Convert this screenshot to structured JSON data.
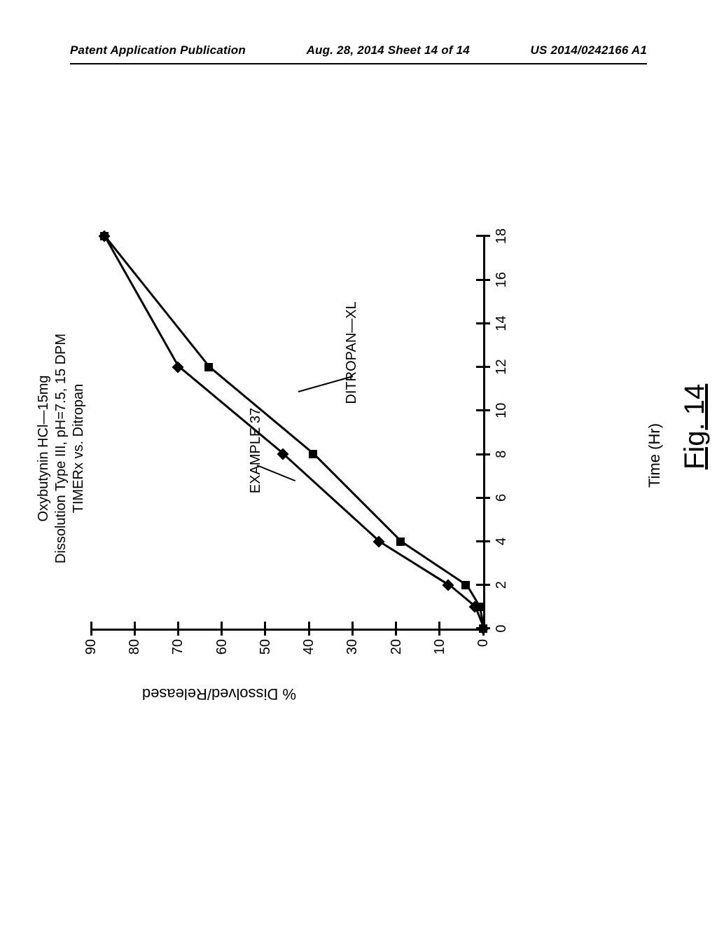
{
  "header": {
    "left": "Patent Application Publication",
    "center": "Aug. 28, 2014  Sheet 14 of 14",
    "right": "US 2014/0242166 A1"
  },
  "chart": {
    "type": "line",
    "title_line1": "Oxybutynin HCl—15mg",
    "title_line2": "Dissolution Type III,   pH=7.5, 15 DPM",
    "title_line3": "TIMERx vs. Ditropan",
    "xlabel": "Time (Hr)",
    "ylabel": "% Dissolved/Released",
    "xlim": [
      0,
      18
    ],
    "ylim": [
      0,
      90
    ],
    "xtick_step": 2,
    "ytick_step": 10,
    "xticks": [
      0,
      2,
      4,
      6,
      8,
      10,
      12,
      14,
      16,
      18
    ],
    "yticks": [
      0,
      10,
      20,
      30,
      40,
      50,
      60,
      70,
      80,
      90
    ],
    "background_color": "#ffffff",
    "axis_line_width": 3,
    "series": [
      {
        "name": "EXAMPLE 37",
        "label": "EXAMPLE 37",
        "marker": "diamond",
        "color": "#000000",
        "line_width": 3,
        "x": [
          0,
          1,
          2,
          4,
          8,
          12,
          18
        ],
        "y": [
          0,
          2,
          8,
          24,
          46,
          70,
          87
        ],
        "annot_pos": {
          "x": 6.2,
          "y": 52
        }
      },
      {
        "name": "DITROPAN-XL",
        "label": "DITROPAN—XL",
        "marker": "square",
        "color": "#000000",
        "line_width": 3,
        "x": [
          0,
          1,
          2,
          4,
          8,
          12,
          18
        ],
        "y": [
          0,
          1,
          4,
          19,
          39,
          63,
          87
        ],
        "annot_pos": {
          "x": 10.3,
          "y": 30
        }
      }
    ],
    "caption": "Fig. 14"
  }
}
